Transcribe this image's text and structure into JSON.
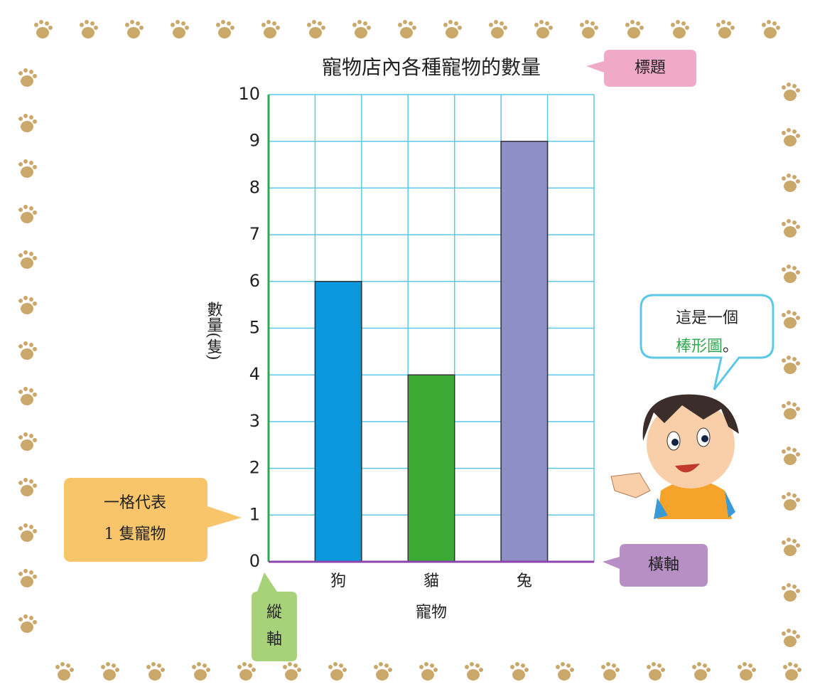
{
  "chart_data": {
    "type": "bar",
    "title": "寵物店內各種寵物的數量",
    "categories": [
      "狗",
      "貓",
      "兔"
    ],
    "values": [
      6,
      4,
      9
    ],
    "colors": [
      "#0a98dc",
      "#3aaa35",
      "#8d8fc6"
    ],
    "xlabel": "寵物",
    "ylabel": "數量(隻)",
    "ylim": [
      0,
      10
    ],
    "yticks": [
      0,
      1,
      2,
      3,
      4,
      5,
      6,
      7,
      8,
      9,
      10
    ],
    "grid": true,
    "annotations": {
      "title_tag": "標題",
      "scale_note": [
        "一格代表",
        "1 隻寵物"
      ],
      "y_axis_tag": [
        "縱",
        "軸"
      ],
      "x_axis_tag": "橫軸",
      "speech": [
        "這是一個",
        "棒形圖",
        "。"
      ]
    }
  }
}
